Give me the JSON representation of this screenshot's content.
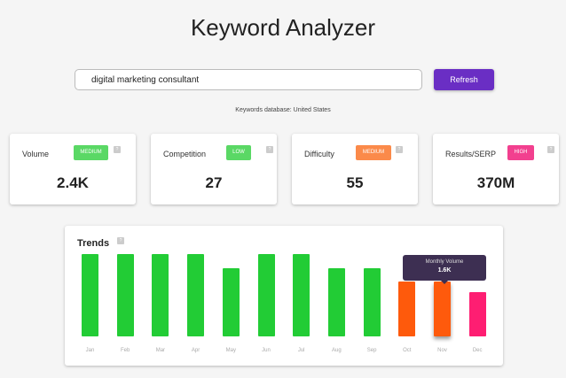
{
  "title": "Keyword Analyzer",
  "search": {
    "value": "digital marketing consultant"
  },
  "refresh_label": "Refresh",
  "database_text": "Keywords database: United States",
  "help_glyph": "?",
  "metrics": [
    {
      "label": "Volume",
      "badge": "MEDIUM",
      "badge_color": "#5ad865",
      "value": "2.4K"
    },
    {
      "label": "Competition",
      "badge": "LOW",
      "badge_color": "#5ad865",
      "value": "27"
    },
    {
      "label": "Difficulty",
      "badge": "MEDIUM",
      "badge_color": "#fb8a4a",
      "value": "55"
    },
    {
      "label": "Results/SERP",
      "badge": "HIGH",
      "badge_color": "#f2408f",
      "value": "370M"
    }
  ],
  "trends": {
    "title": "Trends",
    "tooltip": {
      "label": "Monthly Volume",
      "value": "1.6K",
      "month": "Nov"
    },
    "chart_data": {
      "type": "bar",
      "categories": [
        "Jan",
        "Feb",
        "Mar",
        "Apr",
        "May",
        "Jun",
        "Jul",
        "Aug",
        "Sep",
        "Oct",
        "Nov",
        "Dec"
      ],
      "values": [
        2400,
        2400,
        2400,
        2400,
        2000,
        2400,
        2400,
        2000,
        2000,
        1600,
        1600,
        1300
      ],
      "colors": [
        "#22cc35",
        "#22cc35",
        "#22cc35",
        "#22cc35",
        "#22cc35",
        "#22cc35",
        "#22cc35",
        "#22cc35",
        "#22cc35",
        "#fe5a0c",
        "#fe5a0c",
        "#fe1e72"
      ],
      "grid": false
    }
  }
}
